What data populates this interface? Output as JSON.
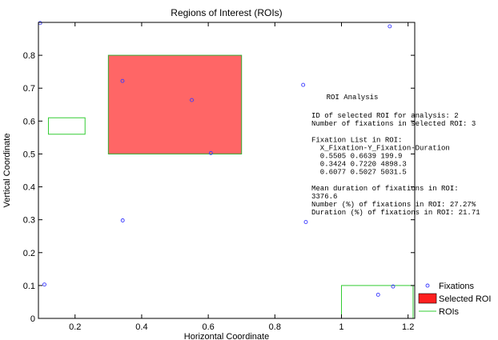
{
  "chart_data": {
    "type": "scatter",
    "title": "Regions of Interest (ROIs)",
    "xlabel": "Horizontal Coordinate",
    "ylabel": "Vertical Coordinate",
    "xlim": [
      0.09,
      1.22
    ],
    "ylim": [
      0,
      0.9
    ],
    "xticks": [
      {
        "value": 0.2,
        "label": "0.2"
      },
      {
        "value": 0.4,
        "label": "0.4"
      },
      {
        "value": 0.6,
        "label": "0.6"
      },
      {
        "value": 0.8,
        "label": "0.8"
      },
      {
        "value": 1.0,
        "label": "1"
      },
      {
        "value": 1.2,
        "label": "1.2"
      }
    ],
    "yticks": [
      {
        "value": 0,
        "label": "0"
      },
      {
        "value": 0.1,
        "label": "0.1"
      },
      {
        "value": 0.2,
        "label": "0.2"
      },
      {
        "value": 0.3,
        "label": "0.3"
      },
      {
        "value": 0.4,
        "label": "0.4"
      },
      {
        "value": 0.5,
        "label": "0.5"
      },
      {
        "value": 0.6,
        "label": "0.6"
      },
      {
        "value": 0.7,
        "label": "0.7"
      },
      {
        "value": 0.8,
        "label": "0.8"
      }
    ],
    "grid": false,
    "legend_position": "bottom-right",
    "legend": [
      {
        "label": "Fixations",
        "marker": "circle"
      },
      {
        "label": "Selected ROI",
        "marker": "filled-rect"
      },
      {
        "label": "ROIs",
        "marker": "line"
      }
    ],
    "series": [
      {
        "name": "Fixations",
        "color": "#3a3aff",
        "points": [
          {
            "x": 0.095,
            "y": 0.898
          },
          {
            "x": 1.145,
            "y": 0.888
          },
          {
            "x": 0.3424,
            "y": 0.722
          },
          {
            "x": 0.885,
            "y": 0.71
          },
          {
            "x": 0.5505,
            "y": 0.6639
          },
          {
            "x": 0.6077,
            "y": 0.5027
          },
          {
            "x": 0.343,
            "y": 0.298
          },
          {
            "x": 0.893,
            "y": 0.293
          },
          {
            "x": 0.108,
            "y": 0.103
          },
          {
            "x": 1.155,
            "y": 0.097
          },
          {
            "x": 1.11,
            "y": 0.072
          }
        ]
      }
    ],
    "rois": [
      {
        "x0": 0.3,
        "x1": 0.7,
        "y0": 0.5,
        "y1": 0.8,
        "selected": true
      },
      {
        "x0": 0.12,
        "x1": 0.23,
        "y0": 0.56,
        "y1": 0.61,
        "selected": false
      },
      {
        "x0": 1.0,
        "x1": 1.215,
        "y0": 0.0,
        "y1": 0.1,
        "selected": false
      }
    ],
    "colors": {
      "selected_fill": "#ff6666",
      "selected_edge": "#33aa33",
      "roi_edge": "#33cc33",
      "marker": "#3a3aff"
    },
    "annotation": {
      "title": "ROI Analysis",
      "lines": [
        "ID of selected ROI for analysis: 2",
        "Number of fixations in selected ROI: 3",
        "",
        "Fixation List in ROI:",
        "  X_Fixation-Y_Fixation-Duration",
        "  0.5505 0.6639 199.9",
        "  0.3424 0.7220 4898.3",
        "  0.6077 0.5027 5031.5",
        "",
        "Mean duration of fixations in ROI:",
        "3376.6",
        "Number (%) of fixations in ROI: 27.27%",
        "Duration (%) of fixations in ROI: 21.71"
      ]
    }
  }
}
